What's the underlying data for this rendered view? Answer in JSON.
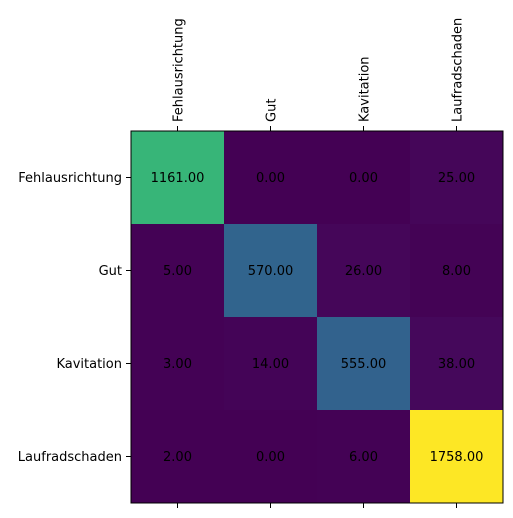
{
  "chart_data": {
    "type": "heatmap",
    "title": "",
    "xlabel": "",
    "ylabel": "",
    "x_tick_position": "top",
    "x_tick_rotation": "vertical",
    "colormap": "viridis",
    "value_range": [
      0,
      1758
    ],
    "grid": false,
    "legend": "none",
    "categories_x": [
      "Fehlausrichtung",
      "Gut",
      "Kavitation",
      "Laufradschaden"
    ],
    "categories_y": [
      "Fehlausrichtung",
      "Gut",
      "Kavitation",
      "Laufradschaden"
    ],
    "values": [
      [
        1161,
        0,
        0,
        25
      ],
      [
        5,
        570,
        26,
        8
      ],
      [
        3,
        14,
        555,
        38
      ],
      [
        2,
        0,
        6,
        1758
      ]
    ],
    "cell_labels": [
      [
        "1161.00",
        "0.00",
        "0.00",
        "25.00"
      ],
      [
        "5.00",
        "570.00",
        "26.00",
        "8.00"
      ],
      [
        "3.00",
        "14.00",
        "555.00",
        "38.00"
      ],
      [
        "2.00",
        "0.00",
        "6.00",
        "1758.00"
      ]
    ]
  }
}
